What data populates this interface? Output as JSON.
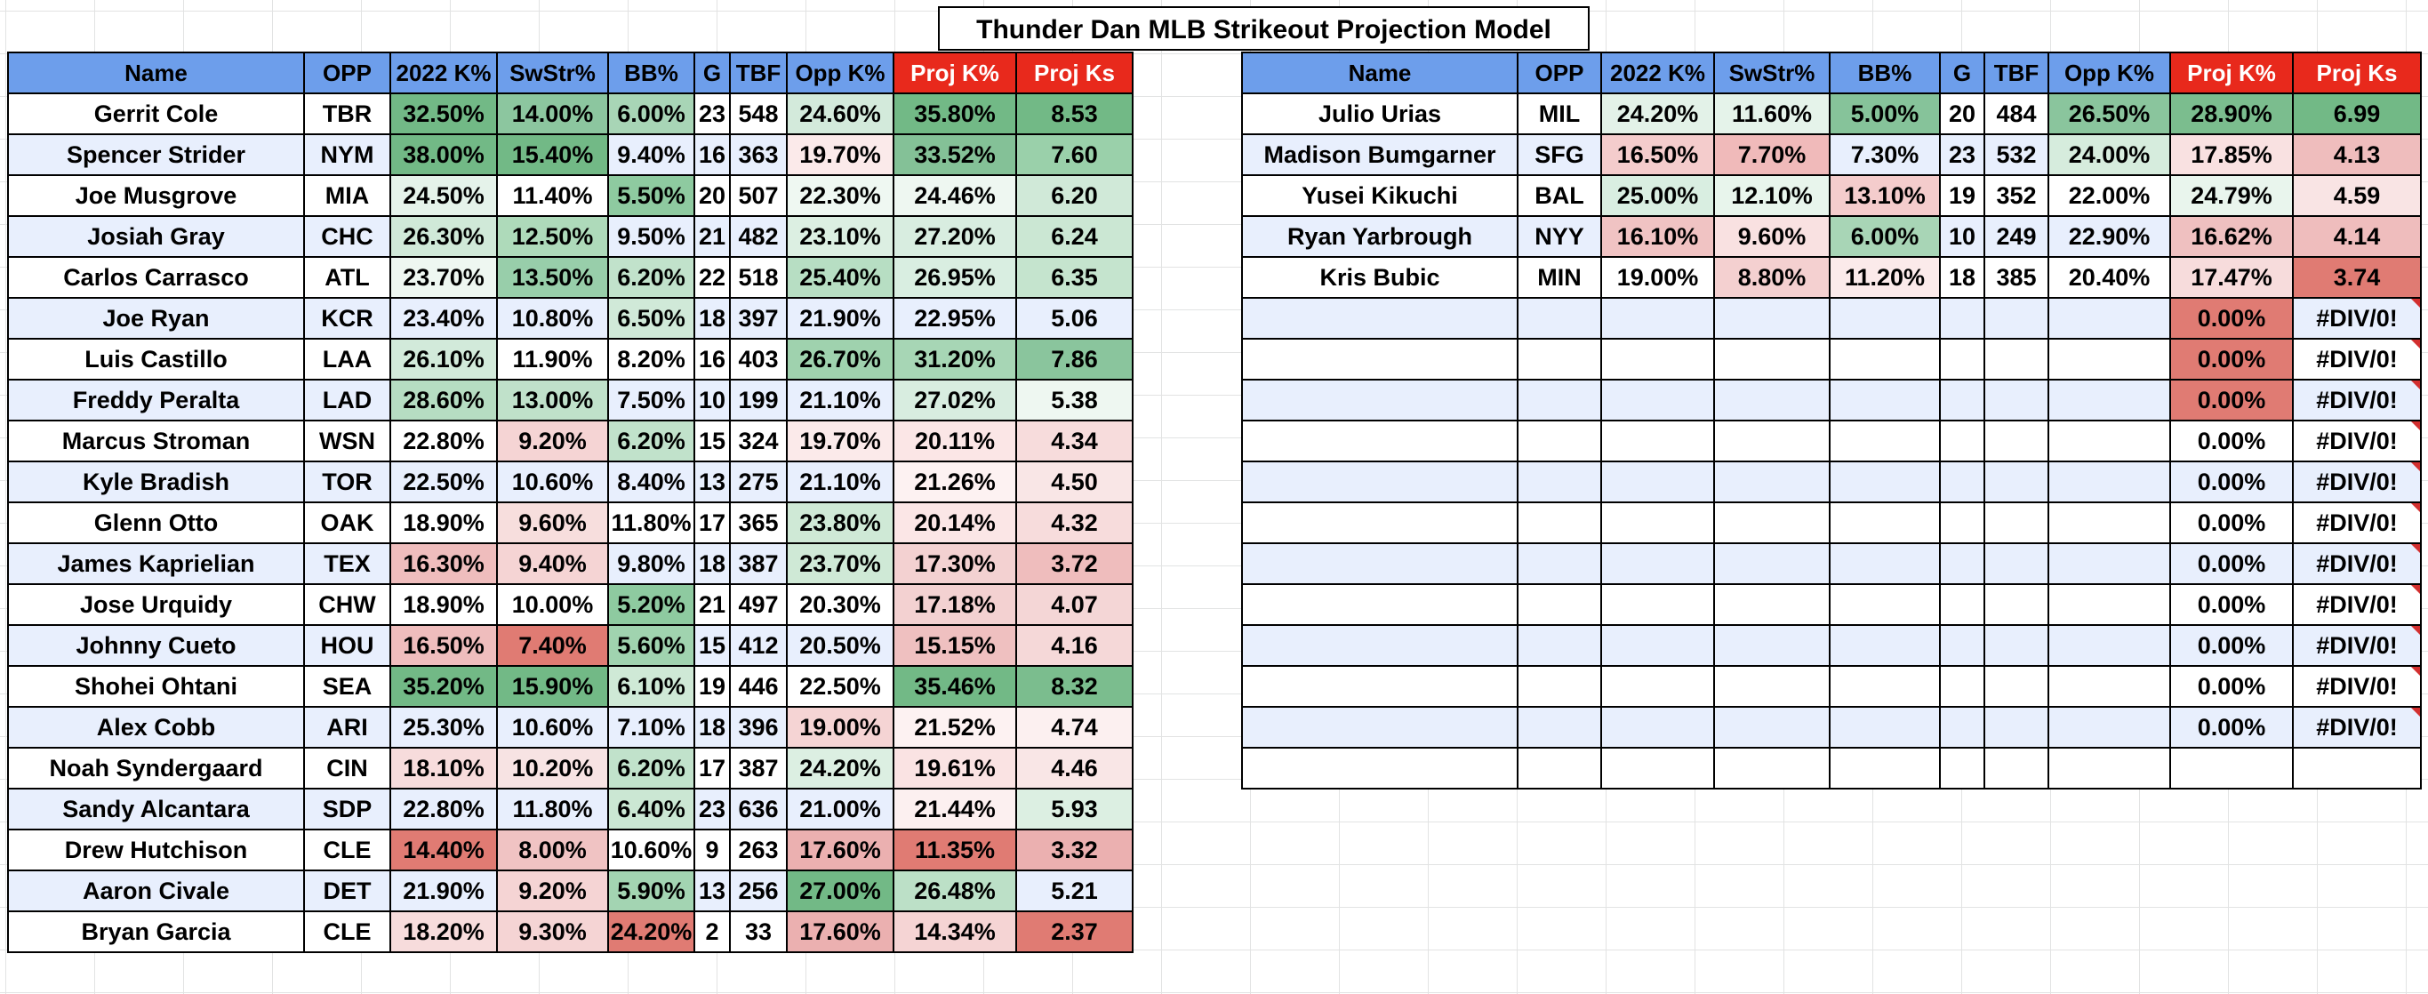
{
  "title": "Thunder Dan MLB Strikeout Projection Model",
  "headers": [
    "Name",
    "OPP",
    "2022 K%",
    "SwStr%",
    "BB%",
    "G",
    "TBF",
    "Opp K%",
    "Proj K%",
    "Proj Ks"
  ],
  "left_table": [
    [
      "Gerrit Cole",
      "TBR",
      "32.50%",
      "14.00%",
      "6.00%",
      "23",
      "548",
      "24.60%",
      "35.80%",
      "8.53"
    ],
    [
      "Spencer Strider",
      "NYM",
      "38.00%",
      "15.40%",
      "9.40%",
      "16",
      "363",
      "19.70%",
      "33.52%",
      "7.60"
    ],
    [
      "Joe Musgrove",
      "MIA",
      "24.50%",
      "11.40%",
      "5.50%",
      "20",
      "507",
      "22.30%",
      "24.46%",
      "6.20"
    ],
    [
      "Josiah Gray",
      "CHC",
      "26.30%",
      "12.50%",
      "9.50%",
      "21",
      "482",
      "23.10%",
      "27.20%",
      "6.24"
    ],
    [
      "Carlos Carrasco",
      "ATL",
      "23.70%",
      "13.50%",
      "6.20%",
      "22",
      "518",
      "25.40%",
      "26.95%",
      "6.35"
    ],
    [
      "Joe Ryan",
      "KCR",
      "23.40%",
      "10.80%",
      "6.50%",
      "18",
      "397",
      "21.90%",
      "22.95%",
      "5.06"
    ],
    [
      "Luis Castillo",
      "LAA",
      "26.10%",
      "11.90%",
      "8.20%",
      "16",
      "403",
      "26.70%",
      "31.20%",
      "7.86"
    ],
    [
      "Freddy Peralta",
      "LAD",
      "28.60%",
      "13.00%",
      "7.50%",
      "10",
      "199",
      "21.10%",
      "27.02%",
      "5.38"
    ],
    [
      "Marcus Stroman",
      "WSN",
      "22.80%",
      "9.20%",
      "6.20%",
      "15",
      "324",
      "19.70%",
      "20.11%",
      "4.34"
    ],
    [
      "Kyle Bradish",
      "TOR",
      "22.50%",
      "10.60%",
      "8.40%",
      "13",
      "275",
      "21.10%",
      "21.26%",
      "4.50"
    ],
    [
      "Glenn Otto",
      "OAK",
      "18.90%",
      "9.60%",
      "11.80%",
      "17",
      "365",
      "23.80%",
      "20.14%",
      "4.32"
    ],
    [
      "James Kaprielian",
      "TEX",
      "16.30%",
      "9.40%",
      "9.80%",
      "18",
      "387",
      "23.70%",
      "17.30%",
      "3.72"
    ],
    [
      "Jose Urquidy",
      "CHW",
      "18.90%",
      "10.00%",
      "5.20%",
      "21",
      "497",
      "20.30%",
      "17.18%",
      "4.07"
    ],
    [
      "Johnny Cueto",
      "HOU",
      "16.50%",
      "7.40%",
      "5.60%",
      "15",
      "412",
      "20.50%",
      "15.15%",
      "4.16"
    ],
    [
      "Shohei Ohtani",
      "SEA",
      "35.20%",
      "15.90%",
      "6.10%",
      "19",
      "446",
      "22.50%",
      "35.46%",
      "8.32"
    ],
    [
      "Alex Cobb",
      "ARI",
      "25.30%",
      "10.60%",
      "7.10%",
      "18",
      "396",
      "19.00%",
      "21.52%",
      "4.74"
    ],
    [
      "Noah Syndergaard",
      "CIN",
      "18.10%",
      "10.20%",
      "6.20%",
      "17",
      "387",
      "24.20%",
      "19.61%",
      "4.46"
    ],
    [
      "Sandy Alcantara",
      "SDP",
      "22.80%",
      "11.80%",
      "6.40%",
      "23",
      "636",
      "21.00%",
      "21.44%",
      "5.93"
    ],
    [
      "Drew Hutchison",
      "CLE",
      "14.40%",
      "8.00%",
      "10.60%",
      "9",
      "263",
      "17.60%",
      "11.35%",
      "3.32"
    ],
    [
      "Aaron Civale",
      "DET",
      "21.90%",
      "9.20%",
      "5.90%",
      "13",
      "256",
      "27.00%",
      "26.48%",
      "5.21"
    ],
    [
      "Bryan Garcia",
      "CLE",
      "18.20%",
      "9.30%",
      "24.20%",
      "2",
      "33",
      "17.60%",
      "14.34%",
      "2.37"
    ]
  ],
  "left_colors": [
    [
      "",
      "",
      "#72b986",
      "#8cc69f",
      "#a8d5b6",
      "",
      "",
      "#d3eadb",
      "#72b986",
      "#72b986"
    ],
    [
      "",
      "",
      "#72b986",
      "#72b986",
      "",
      "",
      "",
      "#fbeaea",
      "#84c197",
      "#9ad0aa"
    ],
    [
      "",
      "",
      "#e5f3ea",
      "",
      "#8ecaa0",
      "",
      "",
      "#eff8f2",
      "#eef7f1",
      "#d0e9d8"
    ],
    [
      "",
      "",
      "#d0e9d8",
      "#aedaba",
      "",
      "",
      "",
      "#dcefe2",
      "#d8ede0",
      "#cbe7d3"
    ],
    [
      "",
      "",
      "#eef7f1",
      "#98ceaa",
      "#c1e2cb",
      "",
      "",
      "#b7dec3",
      "#d9eee1",
      "#c5e4ce"
    ],
    [
      "",
      "",
      "",
      "",
      "#d0e9d8",
      "",
      "",
      "",
      "",
      ""
    ],
    [
      "",
      "",
      "#d2eada",
      "",
      "",
      "",
      "",
      "#9fd2ae",
      "#a7d6b5",
      "#8ac59d"
    ],
    [
      "",
      "",
      "#b6ddc2",
      "#c0e1ca",
      "",
      "",
      "",
      "",
      "#d8ede0",
      "#eef7f1"
    ],
    [
      "",
      "",
      "",
      "#f5d4d4",
      "#c1e2cb",
      "",
      "",
      "#fbeaea",
      "#fbe6e6",
      "#f7dcdc"
    ],
    [
      "",
      "",
      "",
      "",
      "",
      "",
      "",
      "",
      "#fdf2f2",
      "#f9e6e6"
    ],
    [
      "",
      "",
      "",
      "#f7dedd",
      "",
      "",
      "",
      "#cfe9d6",
      "#fbe6e6",
      "#f7dcdc"
    ],
    [
      "",
      "",
      "#efbdbd",
      "#f5d4d4",
      "",
      "",
      "",
      "#cfe9d6",
      "#f3d1d1",
      "#efbdbd"
    ],
    [
      "",
      "",
      "",
      "",
      "#8ecaa0",
      "",
      "",
      "",
      "#f3d1d1",
      "#f4d6d6"
    ],
    [
      "",
      "",
      "#efbdbd",
      "#e07b73",
      "#a0d3af",
      "",
      "",
      "",
      "#efc0c0",
      "#f5d8d8"
    ],
    [
      "",
      "",
      "#72b986",
      "#72b986",
      "#cfe9d6",
      "",
      "",
      "",
      "#72b986",
      "#7bbd8e"
    ],
    [
      "",
      "",
      "",
      "",
      "",
      "",
      "",
      "#f5d4d4",
      "#fdf2f2",
      "#fcf0f0"
    ],
    [
      "",
      "",
      "#f7dcdc",
      "#f7e3e3",
      "#c1e2cb",
      "",
      "",
      "#dcefe2",
      "#fae3e3",
      "#f9e6e6"
    ],
    [
      "",
      "",
      "",
      "",
      "#cbe7d3",
      "",
      "",
      "",
      "#fcf0f0",
      "#dcefe2"
    ],
    [
      "",
      "",
      "#e07b73",
      "#f0c3c3",
      "",
      "",
      "",
      "#ebb0b0",
      "#e07b73",
      "#ebb0b0"
    ],
    [
      "",
      "",
      "",
      "#f5d4d4",
      "#a3d4b2",
      "",
      "",
      "#72b986",
      "#bce0c7",
      ""
    ],
    [
      "",
      "",
      "#f7dcdc",
      "#f5d4d4",
      "#e07b73",
      "",
      "",
      "#ebb0b0",
      "#f5d4d4",
      "#e07b73"
    ]
  ],
  "right_table": [
    [
      "Julio Urias",
      "MIL",
      "24.20%",
      "11.60%",
      "5.00%",
      "20",
      "484",
      "26.50%",
      "28.90%",
      "6.99"
    ],
    [
      "Madison Bumgarner",
      "SFG",
      "16.50%",
      "7.70%",
      "7.30%",
      "23",
      "532",
      "24.00%",
      "17.85%",
      "4.13"
    ],
    [
      "Yusei Kikuchi",
      "BAL",
      "25.00%",
      "12.10%",
      "13.10%",
      "19",
      "352",
      "22.00%",
      "24.79%",
      "4.59"
    ],
    [
      "Ryan Yarbrough",
      "NYY",
      "16.10%",
      "9.60%",
      "6.00%",
      "10",
      "249",
      "22.90%",
      "16.62%",
      "4.14"
    ],
    [
      "Kris Bubic",
      "MIN",
      "19.00%",
      "8.80%",
      "11.20%",
      "18",
      "385",
      "20.40%",
      "17.47%",
      "3.74"
    ],
    [
      "",
      "",
      "",
      "",
      "",
      "",
      "",
      "",
      "0.00%",
      "#DIV/0!"
    ],
    [
      "",
      "",
      "",
      "",
      "",
      "",
      "",
      "",
      "0.00%",
      "#DIV/0!"
    ],
    [
      "",
      "",
      "",
      "",
      "",
      "",
      "",
      "",
      "0.00%",
      "#DIV/0!"
    ],
    [
      "",
      "",
      "",
      "",
      "",
      "",
      "",
      "",
      "0.00%",
      "#DIV/0!"
    ],
    [
      "",
      "",
      "",
      "",
      "",
      "",
      "",
      "",
      "0.00%",
      "#DIV/0!"
    ],
    [
      "",
      "",
      "",
      "",
      "",
      "",
      "",
      "",
      "0.00%",
      "#DIV/0!"
    ],
    [
      "",
      "",
      "",
      "",
      "",
      "",
      "",
      "",
      "0.00%",
      "#DIV/0!"
    ],
    [
      "",
      "",
      "",
      "",
      "",
      "",
      "",
      "",
      "0.00%",
      "#DIV/0!"
    ],
    [
      "",
      "",
      "",
      "",
      "",
      "",
      "",
      "",
      "0.00%",
      "#DIV/0!"
    ],
    [
      "",
      "",
      "",
      "",
      "",
      "",
      "",
      "",
      "0.00%",
      "#DIV/0!"
    ],
    [
      "",
      "",
      "",
      "",
      "",
      "",
      "",
      "",
      "0.00%",
      "#DIV/0!"
    ],
    [
      "",
      "",
      "",
      "",
      "",
      "",
      "",
      "",
      "",
      ""
    ]
  ],
  "right_colors": [
    [
      "",
      "",
      "#e3f2e8",
      "#e5f3ea",
      "#86c39a",
      "",
      "",
      "#8ac59d",
      "#7bbd8e",
      "#72b986"
    ],
    [
      "",
      "",
      "#f4cccc",
      "#f0baba",
      "",
      "",
      "",
      "#d6ecdd",
      "#f9e1e1",
      "#efbdbd"
    ],
    [
      "",
      "",
      "#d9eee1",
      "#e8f5ec",
      "#f4cccc",
      "",
      "",
      "",
      "#e9f5ed",
      "#f9e4e4"
    ],
    [
      "",
      "",
      "#f0c3c3",
      "#f9e1e1",
      "#a8d5b6",
      "",
      "",
      "",
      "#efc0c0",
      "#efbdbd"
    ],
    [
      "",
      "",
      "",
      "#f4d0d0",
      "#fbeaea",
      "",
      "",
      "",
      "#f7dcdc",
      "#e07b73"
    ],
    [
      "",
      "",
      "",
      "",
      "",
      "",
      "",
      "",
      "#e07b73",
      ""
    ],
    [
      "",
      "",
      "",
      "",
      "",
      "",
      "",
      "",
      "#e07b73",
      ""
    ],
    [
      "",
      "",
      "",
      "",
      "",
      "",
      "",
      "",
      "#e07b73",
      ""
    ],
    [
      "",
      "",
      "",
      "",
      "",
      "",
      "",
      "",
      "",
      ""
    ],
    [
      "",
      "",
      "",
      "",
      "",
      "",
      "",
      "",
      "",
      ""
    ],
    [
      "",
      "",
      "",
      "",
      "",
      "",
      "",
      "",
      "",
      ""
    ],
    [
      "",
      "",
      "",
      "",
      "",
      "",
      "",
      "",
      "",
      ""
    ],
    [
      "",
      "",
      "",
      "",
      "",
      "",
      "",
      "",
      "",
      ""
    ],
    [
      "",
      "",
      "",
      "",
      "",
      "",
      "",
      "",
      "",
      ""
    ],
    [
      "",
      "",
      "",
      "",
      "",
      "",
      "",
      "",
      "",
      ""
    ],
    [
      "",
      "",
      "",
      "",
      "",
      "",
      "",
      "",
      "",
      ""
    ],
    [
      "",
      "",
      "",
      "",
      "",
      "",
      "",
      "",
      "",
      ""
    ]
  ],
  "header_colors": {
    "blue": "#6d9eeb",
    "red": "#e8291c",
    "row_band": "#e8effd"
  }
}
